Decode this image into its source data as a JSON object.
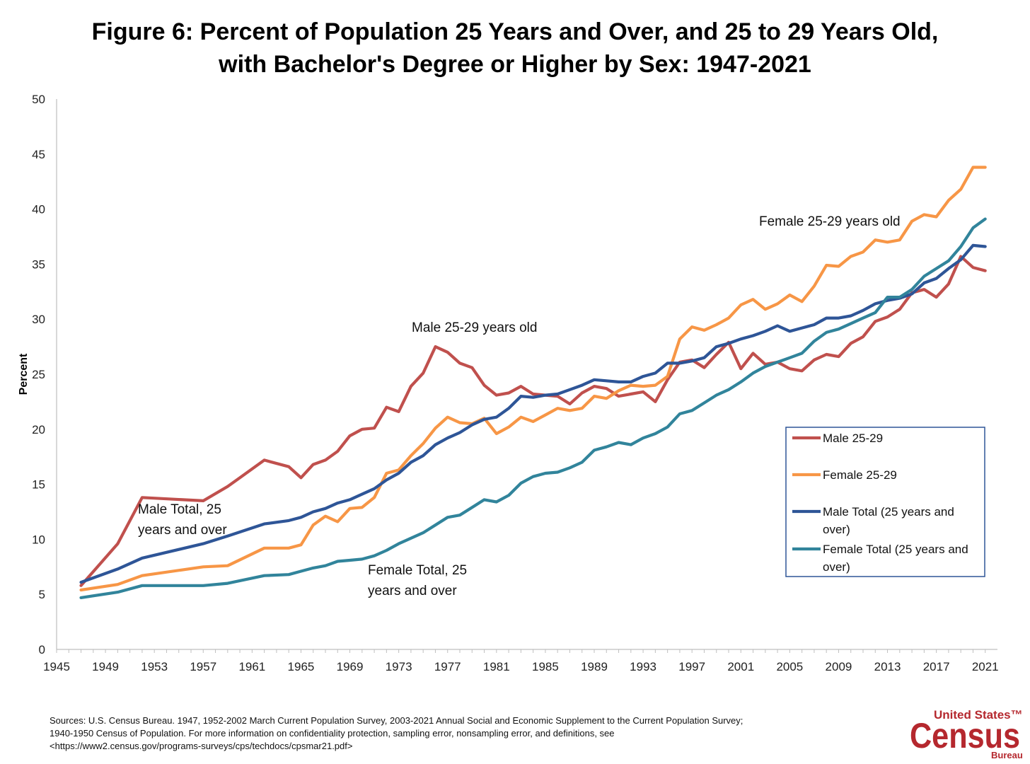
{
  "title_line1": "Figure 6: Percent of Population 25 Years and Over, and 25 to 29 Years Old,",
  "title_line2": "with Bachelor's Degree or Higher by Sex: 1947-2021",
  "sources": {
    "line1": "Sources:  U.S. Census Bureau. 1947, 1952-2002 March Current Population Survey, 2003-2021 Annual Social and Economic Supplement to the Current Population Survey;",
    "line2": "1940-1950 Census of Population. For more information on confidentiality protection, sampling error, nonsampling error, and definitions, see",
    "line3": "<https://www2.census.gov/programs-surveys/cps/techdocs/cpsmar21.pdf>"
  },
  "logo": {
    "line1": "United States™",
    "line2": "Census",
    "line3": "Bureau",
    "color": "#b5282e"
  },
  "annotations": {
    "male_total": [
      "Male Total, 25",
      "years and over"
    ],
    "female_total": [
      "Female Total, 25",
      "years and over"
    ],
    "male_2529": "Male 25-29 years old",
    "female_2529": "Female 25-29 years old"
  },
  "chart_data": {
    "type": "line",
    "ylabel": "Percent",
    "xlabel": "",
    "xlim": [
      1945,
      2022
    ],
    "ylim": [
      0,
      50
    ],
    "yticks": [
      0,
      5,
      10,
      15,
      20,
      25,
      30,
      35,
      40,
      45,
      50
    ],
    "xticks": [
      1945,
      1949,
      1953,
      1957,
      1961,
      1965,
      1969,
      1973,
      1977,
      1981,
      1985,
      1989,
      1993,
      1997,
      2001,
      2005,
      2009,
      2013,
      2017,
      2021
    ],
    "grid": false,
    "legend": "right",
    "series": [
      {
        "name": "Male 25-29",
        "color": "#c0504d",
        "points": [
          [
            1947,
            5.8
          ],
          [
            1950,
            9.6
          ],
          [
            1952,
            13.8
          ],
          [
            1957,
            13.5
          ],
          [
            1959,
            14.8
          ],
          [
            1960,
            15.6
          ],
          [
            1962,
            17.2
          ],
          [
            1964,
            16.6
          ],
          [
            1965,
            15.6
          ],
          [
            1966,
            16.8
          ],
          [
            1967,
            17.2
          ],
          [
            1968,
            18.0
          ],
          [
            1969,
            19.4
          ],
          [
            1970,
            20.0
          ],
          [
            1971,
            20.1
          ],
          [
            1972,
            22.0
          ],
          [
            1973,
            21.6
          ],
          [
            1974,
            23.9
          ],
          [
            1975,
            25.1
          ],
          [
            1976,
            27.5
          ],
          [
            1977,
            27.0
          ],
          [
            1978,
            26.0
          ],
          [
            1979,
            25.6
          ],
          [
            1980,
            24.0
          ],
          [
            1981,
            23.1
          ],
          [
            1982,
            23.3
          ],
          [
            1983,
            23.9
          ],
          [
            1984,
            23.2
          ],
          [
            1985,
            23.1
          ],
          [
            1986,
            23.0
          ],
          [
            1987,
            22.3
          ],
          [
            1988,
            23.3
          ],
          [
            1989,
            23.9
          ],
          [
            1990,
            23.7
          ],
          [
            1991,
            23.0
          ],
          [
            1992,
            23.2
          ],
          [
            1993,
            23.4
          ],
          [
            1994,
            22.5
          ],
          [
            1995,
            24.5
          ],
          [
            1996,
            26.1
          ],
          [
            1997,
            26.3
          ],
          [
            1998,
            25.6
          ],
          [
            1999,
            26.8
          ],
          [
            2000,
            27.9
          ],
          [
            2001,
            25.5
          ],
          [
            2002,
            26.9
          ],
          [
            2003,
            25.9
          ],
          [
            2004,
            26.1
          ],
          [
            2005,
            25.5
          ],
          [
            2006,
            25.3
          ],
          [
            2007,
            26.3
          ],
          [
            2008,
            26.8
          ],
          [
            2009,
            26.6
          ],
          [
            2010,
            27.8
          ],
          [
            2011,
            28.4
          ],
          [
            2012,
            29.8
          ],
          [
            2013,
            30.2
          ],
          [
            2014,
            30.9
          ],
          [
            2015,
            32.4
          ],
          [
            2016,
            32.7
          ],
          [
            2017,
            32.0
          ],
          [
            2018,
            33.2
          ],
          [
            2019,
            35.7
          ],
          [
            2020,
            34.7
          ],
          [
            2021,
            34.4
          ]
        ]
      },
      {
        "name": "Female 25-29",
        "color": "#f79646",
        "points": [
          [
            1947,
            5.4
          ],
          [
            1950,
            5.9
          ],
          [
            1952,
            6.7
          ],
          [
            1957,
            7.5
          ],
          [
            1959,
            7.6
          ],
          [
            1962,
            9.2
          ],
          [
            1964,
            9.2
          ],
          [
            1965,
            9.5
          ],
          [
            1966,
            11.3
          ],
          [
            1967,
            12.1
          ],
          [
            1968,
            11.6
          ],
          [
            1969,
            12.8
          ],
          [
            1970,
            12.9
          ],
          [
            1971,
            13.8
          ],
          [
            1972,
            16.0
          ],
          [
            1973,
            16.3
          ],
          [
            1974,
            17.6
          ],
          [
            1975,
            18.7
          ],
          [
            1976,
            20.1
          ],
          [
            1977,
            21.1
          ],
          [
            1978,
            20.6
          ],
          [
            1979,
            20.5
          ],
          [
            1980,
            21.0
          ],
          [
            1981,
            19.6
          ],
          [
            1982,
            20.2
          ],
          [
            1983,
            21.1
          ],
          [
            1984,
            20.7
          ],
          [
            1985,
            21.3
          ],
          [
            1986,
            21.9
          ],
          [
            1987,
            21.7
          ],
          [
            1988,
            21.9
          ],
          [
            1989,
            23.0
          ],
          [
            1990,
            22.8
          ],
          [
            1991,
            23.5
          ],
          [
            1992,
            24.0
          ],
          [
            1993,
            23.9
          ],
          [
            1994,
            24.0
          ],
          [
            1995,
            24.8
          ],
          [
            1996,
            28.2
          ],
          [
            1997,
            29.3
          ],
          [
            1998,
            29.0
          ],
          [
            1999,
            29.5
          ],
          [
            2000,
            30.1
          ],
          [
            2001,
            31.3
          ],
          [
            2002,
            31.8
          ],
          [
            2003,
            30.9
          ],
          [
            2004,
            31.4
          ],
          [
            2005,
            32.2
          ],
          [
            2006,
            31.6
          ],
          [
            2007,
            33.0
          ],
          [
            2008,
            34.9
          ],
          [
            2009,
            34.8
          ],
          [
            2010,
            35.7
          ],
          [
            2011,
            36.1
          ],
          [
            2012,
            37.2
          ],
          [
            2013,
            37.0
          ],
          [
            2014,
            37.2
          ],
          [
            2015,
            38.9
          ],
          [
            2016,
            39.5
          ],
          [
            2017,
            39.3
          ],
          [
            2018,
            40.8
          ],
          [
            2019,
            41.8
          ],
          [
            2020,
            43.8
          ],
          [
            2021,
            43.8
          ]
        ]
      },
      {
        "name": "Male Total (25 years and over)",
        "color": "#2e5597",
        "points": [
          [
            1947,
            6.1
          ],
          [
            1950,
            7.3
          ],
          [
            1952,
            8.3
          ],
          [
            1957,
            9.6
          ],
          [
            1959,
            10.3
          ],
          [
            1962,
            11.4
          ],
          [
            1964,
            11.7
          ],
          [
            1965,
            12.0
          ],
          [
            1966,
            12.5
          ],
          [
            1967,
            12.8
          ],
          [
            1968,
            13.3
          ],
          [
            1969,
            13.6
          ],
          [
            1970,
            14.1
          ],
          [
            1971,
            14.6
          ],
          [
            1972,
            15.4
          ],
          [
            1973,
            16.0
          ],
          [
            1974,
            17.0
          ],
          [
            1975,
            17.6
          ],
          [
            1976,
            18.6
          ],
          [
            1977,
            19.2
          ],
          [
            1978,
            19.7
          ],
          [
            1979,
            20.4
          ],
          [
            1980,
            20.9
          ],
          [
            1981,
            21.1
          ],
          [
            1982,
            21.9
          ],
          [
            1983,
            23.0
          ],
          [
            1984,
            22.9
          ],
          [
            1985,
            23.1
          ],
          [
            1986,
            23.2
          ],
          [
            1987,
            23.6
          ],
          [
            1988,
            24.0
          ],
          [
            1989,
            24.5
          ],
          [
            1990,
            24.4
          ],
          [
            1991,
            24.3
          ],
          [
            1992,
            24.3
          ],
          [
            1993,
            24.8
          ],
          [
            1994,
            25.1
          ],
          [
            1995,
            26.0
          ],
          [
            1996,
            26.0
          ],
          [
            1997,
            26.2
          ],
          [
            1998,
            26.5
          ],
          [
            1999,
            27.5
          ],
          [
            2000,
            27.8
          ],
          [
            2001,
            28.2
          ],
          [
            2002,
            28.5
          ],
          [
            2003,
            28.9
          ],
          [
            2004,
            29.4
          ],
          [
            2005,
            28.9
          ],
          [
            2006,
            29.2
          ],
          [
            2007,
            29.5
          ],
          [
            2008,
            30.1
          ],
          [
            2009,
            30.1
          ],
          [
            2010,
            30.3
          ],
          [
            2011,
            30.8
          ],
          [
            2012,
            31.4
          ],
          [
            2013,
            31.7
          ],
          [
            2014,
            31.9
          ],
          [
            2015,
            32.3
          ],
          [
            2016,
            33.3
          ],
          [
            2017,
            33.7
          ],
          [
            2018,
            34.6
          ],
          [
            2019,
            35.4
          ],
          [
            2020,
            36.7
          ],
          [
            2021,
            36.6
          ]
        ]
      },
      {
        "name": "Female Total (25 years and over)",
        "color": "#31849b",
        "points": [
          [
            1947,
            4.7
          ],
          [
            1950,
            5.2
          ],
          [
            1952,
            5.8
          ],
          [
            1957,
            5.8
          ],
          [
            1959,
            6.0
          ],
          [
            1962,
            6.7
          ],
          [
            1964,
            6.8
          ],
          [
            1965,
            7.1
          ],
          [
            1966,
            7.4
          ],
          [
            1967,
            7.6
          ],
          [
            1968,
            8.0
          ],
          [
            1969,
            8.1
          ],
          [
            1970,
            8.2
          ],
          [
            1971,
            8.5
          ],
          [
            1972,
            9.0
          ],
          [
            1973,
            9.6
          ],
          [
            1974,
            10.1
          ],
          [
            1975,
            10.6
          ],
          [
            1976,
            11.3
          ],
          [
            1977,
            12.0
          ],
          [
            1978,
            12.2
          ],
          [
            1979,
            12.9
          ],
          [
            1980,
            13.6
          ],
          [
            1981,
            13.4
          ],
          [
            1982,
            14.0
          ],
          [
            1983,
            15.1
          ],
          [
            1984,
            15.7
          ],
          [
            1985,
            16.0
          ],
          [
            1986,
            16.1
          ],
          [
            1987,
            16.5
          ],
          [
            1988,
            17.0
          ],
          [
            1989,
            18.1
          ],
          [
            1990,
            18.4
          ],
          [
            1991,
            18.8
          ],
          [
            1992,
            18.6
          ],
          [
            1993,
            19.2
          ],
          [
            1994,
            19.6
          ],
          [
            1995,
            20.2
          ],
          [
            1996,
            21.4
          ],
          [
            1997,
            21.7
          ],
          [
            1998,
            22.4
          ],
          [
            1999,
            23.1
          ],
          [
            2000,
            23.6
          ],
          [
            2001,
            24.3
          ],
          [
            2002,
            25.1
          ],
          [
            2003,
            25.7
          ],
          [
            2004,
            26.1
          ],
          [
            2005,
            26.5
          ],
          [
            2006,
            26.9
          ],
          [
            2007,
            28.0
          ],
          [
            2008,
            28.8
          ],
          [
            2009,
            29.1
          ],
          [
            2010,
            29.6
          ],
          [
            2011,
            30.1
          ],
          [
            2012,
            30.6
          ],
          [
            2013,
            32.0
          ],
          [
            2014,
            32.0
          ],
          [
            2015,
            32.7
          ],
          [
            2016,
            33.9
          ],
          [
            2017,
            34.6
          ],
          [
            2018,
            35.3
          ],
          [
            2019,
            36.6
          ],
          [
            2020,
            38.3
          ],
          [
            2021,
            39.1
          ]
        ]
      }
    ]
  }
}
